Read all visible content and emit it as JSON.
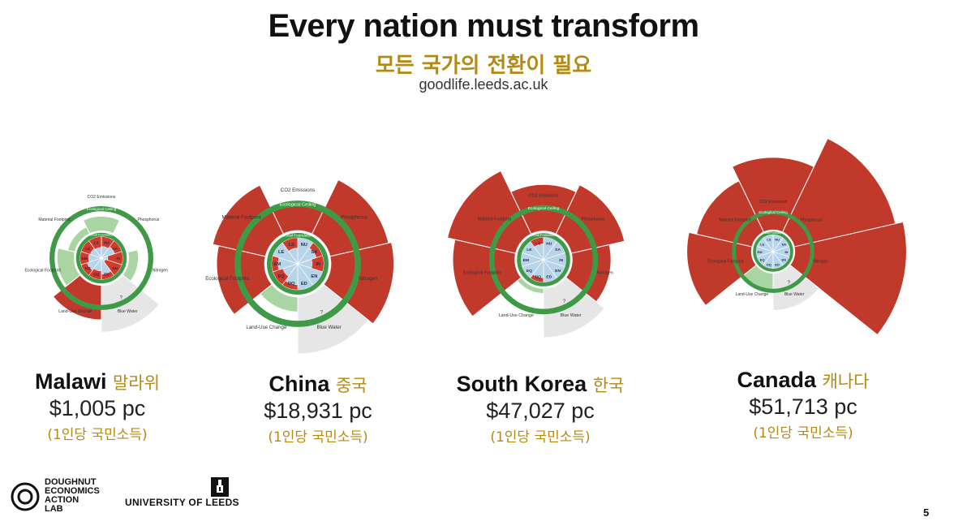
{
  "header": {
    "title": "Every nation must transform",
    "subtitle": "모든 국가의 전환이 필요",
    "source": "goodlife.leeds.ac.uk"
  },
  "ring_labels": {
    "ceiling": "Ecological Ceiling",
    "foundation": "Social Foundation"
  },
  "colors": {
    "overshoot": "#c0392b",
    "safe": "#a8d5a2",
    "ring": "#3f9a47",
    "shortfall": "#d23a2e",
    "achieved": "#b7d4e8",
    "unknown": "#e6e6e6",
    "accent": "#b58a12"
  },
  "countries": [
    {
      "name": "Malawi",
      "name_kr": "말라위",
      "income": "$1,005 pc",
      "income_kr": "(1인당 국민소득)",
      "outer_labels": [
        "CO2 Emissions",
        "Phosphorus",
        "Nitrogen",
        "Blue Water",
        "Land-Use Change",
        "Ecological Footprint",
        "Material Footprint"
      ],
      "inner_labels": [
        "NU",
        "SA",
        "IN",
        "EN",
        "ED",
        "DQ",
        "EQ",
        "EM",
        "LE",
        "LS"
      ],
      "unknown_label": "?",
      "biophysical_ratio": [
        0.85,
        0.55,
        0.75,
        1.0,
        1.25,
        0.9,
        0.7
      ],
      "social_achievement": [
        0.55,
        0.65,
        0.3,
        0.2,
        0.75,
        0.6,
        0.7,
        0.6,
        0.55,
        0.5
      ]
    },
    {
      "name": "China",
      "name_kr": "중국",
      "income": "$18,931 pc",
      "income_kr": "(1인당 국민소득)",
      "outer_labels": [
        "CO2 Emissions",
        "Phosphorus",
        "Nitrogen",
        "Blue Water",
        "Land-Use Change",
        "Ecological Footprint",
        "Material Footprint"
      ],
      "inner_labels": [
        "NU",
        "SA",
        "IN",
        "EN",
        "ED",
        "DQ",
        "EQ",
        "EM",
        "LE",
        "LS"
      ],
      "unknown_label": "?",
      "biophysical_ratio": [
        1.05,
        1.55,
        1.6,
        1.0,
        0.8,
        1.35,
        1.45
      ],
      "social_achievement": [
        1.0,
        0.75,
        0.55,
        1.0,
        1.0,
        0.8,
        0.6,
        0.75,
        1.0,
        0.6
      ]
    },
    {
      "name": "South Korea",
      "name_kr": "한국",
      "income": "$47,027 pc",
      "income_kr": "(1인당 국민소득)",
      "outer_labels": [
        "CO2 Emissions",
        "Phosphorus",
        "Nitrogen",
        "Blue Water",
        "Land-Use Change",
        "Ecological Footprint",
        "Material Footprint"
      ],
      "inner_labels": [
        "NU",
        "SA",
        "IN",
        "EN",
        "ED",
        "DQ",
        "EQ",
        "EM",
        "LE",
        "LS"
      ],
      "unknown_label": "?",
      "biophysical_ratio": [
        1.45,
        1.6,
        1.3,
        1.0,
        0.65,
        1.75,
        1.9
      ],
      "social_achievement": [
        1.0,
        1.0,
        1.0,
        1.0,
        1.0,
        0.8,
        1.0,
        1.0,
        1.0,
        0.7
      ]
    },
    {
      "name": "Canada",
      "name_kr": "캐나다",
      "income": "$51,713 pc",
      "income_kr": "(1인당 국민소득)",
      "outer_labels": [
        "CO2 Emissions",
        "Phosphorus",
        "Nitrogen",
        "Blue Water",
        "Land-Use Change",
        "Ecological Footprint",
        "Material Footprint"
      ],
      "inner_labels": [
        "NU",
        "SA",
        "IN",
        "EN",
        "ED",
        "DQ",
        "EQ",
        "EM",
        "LE",
        "LS"
      ],
      "unknown_label": "?",
      "biophysical_ratio": [
        2.4,
        3.2,
        3.4,
        1.0,
        1.0,
        2.2,
        2.0
      ],
      "social_achievement": [
        1.0,
        1.0,
        1.0,
        1.0,
        1.0,
        1.0,
        1.0,
        1.0,
        1.0,
        1.0
      ]
    }
  ],
  "logos": {
    "doughnut_lines": [
      "DOUGHNUT",
      "ECONOMICS",
      "ACTION",
      "LAB"
    ],
    "university": "UNIVERSITY OF LEEDS"
  },
  "page_number": "5"
}
